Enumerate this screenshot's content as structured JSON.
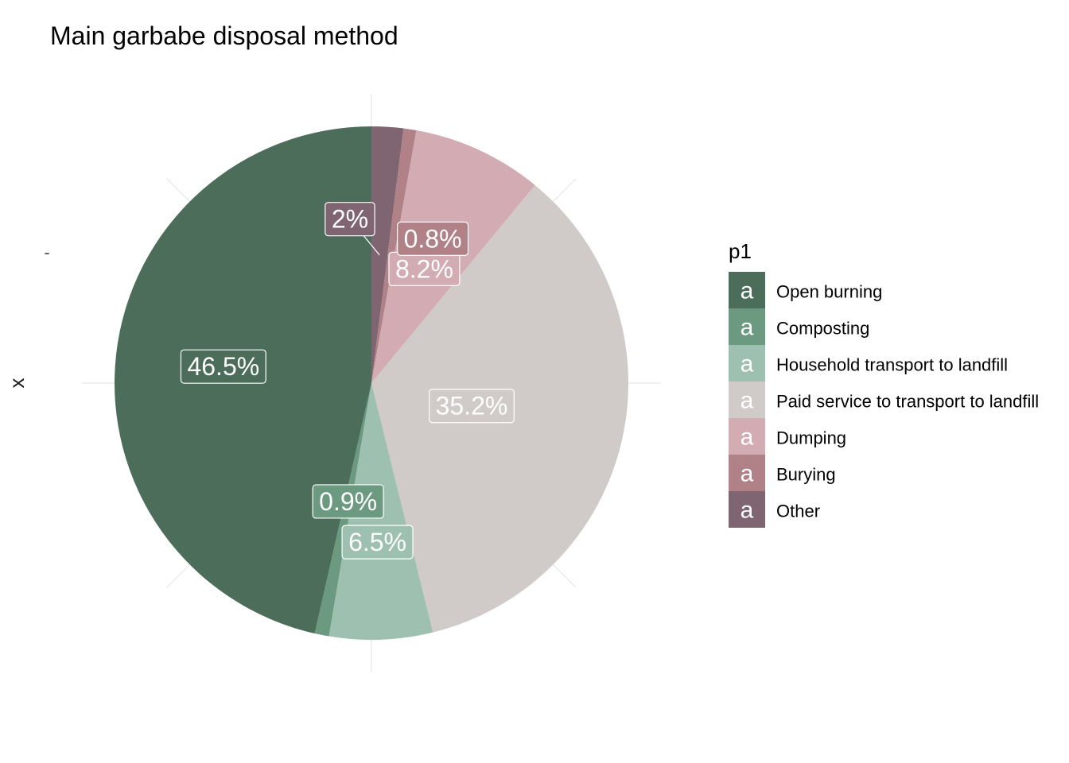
{
  "chart_data": {
    "type": "pie",
    "title": "Main garbabe disposal method",
    "xlabel": "x",
    "ytick": "-",
    "legend": {
      "title": "p1",
      "key_glyph": "a",
      "placement": "right"
    },
    "grid": true,
    "slices": [
      {
        "name": "Open burning",
        "value": 46.5,
        "label": "46.5%",
        "color": "#4d6d5b"
      },
      {
        "name": "Composting",
        "value": 0.9,
        "label": "0.9%",
        "color": "#6b9a80"
      },
      {
        "name": "Household transport to landfill",
        "value": 6.5,
        "label": "6.5%",
        "color": "#9dc0b0"
      },
      {
        "name": "Paid service to transport to landfill",
        "value": 35.2,
        "label": "35.2%",
        "color": "#d0cbc8"
      },
      {
        "name": "Dumping",
        "value": 8.2,
        "label": "8.2%",
        "color": "#d2abb3"
      },
      {
        "name": "Burying",
        "value": 0.8,
        "label": "0.8%",
        "color": "#b08288"
      },
      {
        "name": "Other",
        "value": 2.0,
        "label": "2%",
        "color": "#7e6571"
      }
    ]
  }
}
